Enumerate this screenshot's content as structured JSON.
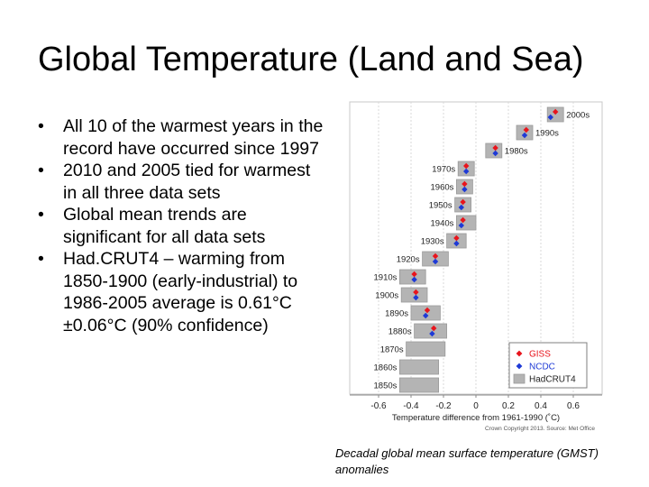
{
  "slide": {
    "title": "Global Temperature (Land and Sea)",
    "bullets": [
      "All 10 of the warmest years in the record have occurred since 1997",
      "2010 and 2005 tied for warmest in all three data sets",
      "Global mean trends are significant for all data sets",
      "Had.CRUT4 – warming from 1850-1900 (early-industrial) to 1986-2005 average is 0.61°C ±0.06°C (90% confidence)"
    ],
    "bullet_symbol": "•",
    "caption": "Decadal global mean surface temperature (GMST) anomalies"
  },
  "chart_data": {
    "type": "scatter",
    "xlabel": "Temperature difference from 1961-1990 (˚C)",
    "xlim": [
      -0.7,
      0.7
    ],
    "xticks": [
      -0.6,
      -0.4,
      -0.2,
      0,
      0.2,
      0.4,
      0.6
    ],
    "xtick_labels": [
      "-0.6",
      "-0.4",
      "-0.2",
      "0",
      "0.2",
      "0.4",
      "0.6"
    ],
    "grid": true,
    "legend_position": "bottom-right",
    "credit": "Crown Copyright 2013. Source: Met Office",
    "categories": [
      "1850s",
      "1860s",
      "1870s",
      "1880s",
      "1890s",
      "1900s",
      "1910s",
      "1920s",
      "1930s",
      "1940s",
      "1950s",
      "1960s",
      "1970s",
      "1980s",
      "1990s",
      "2000s"
    ],
    "series": [
      {
        "name": "GISS",
        "color": "#e8141c",
        "marker": "diamond",
        "values": [
          null,
          null,
          null,
          -0.26,
          -0.3,
          -0.37,
          -0.38,
          -0.25,
          -0.12,
          -0.08,
          -0.08,
          -0.07,
          -0.06,
          0.12,
          0.31,
          0.49
        ]
      },
      {
        "name": "NCDC",
        "color": "#1e3ad6",
        "marker": "diamond",
        "values": [
          null,
          null,
          null,
          -0.27,
          -0.31,
          -0.37,
          -0.38,
          -0.25,
          -0.12,
          -0.09,
          -0.09,
          -0.07,
          -0.06,
          0.12,
          0.3,
          0.46
        ]
      },
      {
        "name": "HadCRUT4",
        "color": "#b4b4b4",
        "marker": "box",
        "values": [
          -0.35,
          -0.35,
          -0.31,
          -0.28,
          -0.31,
          -0.38,
          -0.39,
          -0.25,
          -0.12,
          -0.06,
          -0.08,
          -0.07,
          -0.06,
          0.11,
          0.3,
          0.49
        ],
        "spread": [
          0.12,
          0.12,
          0.12,
          0.1,
          0.09,
          0.08,
          0.08,
          0.08,
          0.06,
          0.06,
          0.05,
          0.05,
          0.05,
          0.05,
          0.05,
          0.05
        ]
      }
    ]
  }
}
